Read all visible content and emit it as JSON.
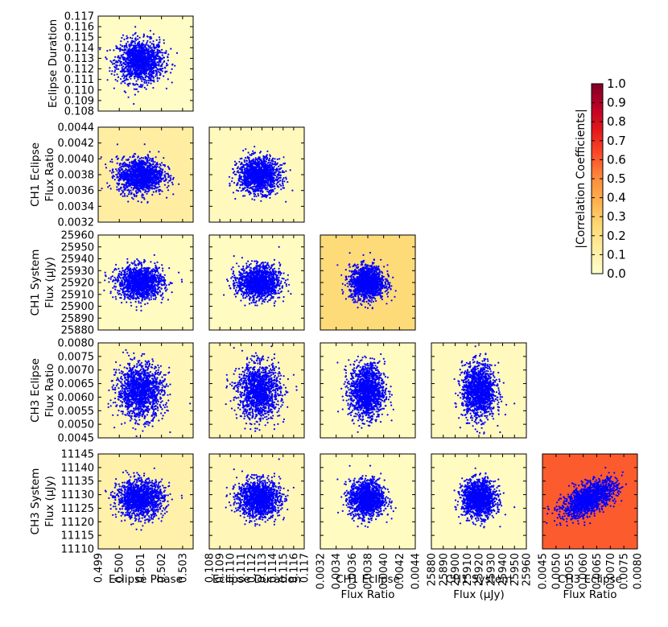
{
  "chart_data": {
    "type": "scatter",
    "title": "",
    "variables": [
      {
        "key": "phase",
        "label_lines": [
          "Eclipse Phase"
        ],
        "range": [
          0.499,
          0.5035
        ],
        "ticks": [
          "0.499",
          "0.500",
          "0.501",
          "0.502",
          "0.503"
        ],
        "tick_values": [
          0.499,
          0.5,
          0.501,
          0.502,
          0.503
        ],
        "mean": 0.501,
        "sd": 0.00055
      },
      {
        "key": "duration",
        "label_lines": [
          "Eclipse Duration"
        ],
        "range": [
          0.108,
          0.117
        ],
        "ticks": [
          "0.108",
          "0.109",
          "0.110",
          "0.111",
          "0.112",
          "0.113",
          "0.114",
          "0.115",
          "0.116",
          "0.117"
        ],
        "tick_values": [
          0.108,
          0.109,
          0.11,
          0.111,
          0.112,
          0.113,
          0.114,
          0.115,
          0.116,
          0.117
        ],
        "mean": 0.1127,
        "sd": 0.001
      },
      {
        "key": "ch1_ratio",
        "label_lines": [
          "CH1 Eclipse",
          "Flux Ratio"
        ],
        "range": [
          0.0032,
          0.0044
        ],
        "ticks": [
          "0.0032",
          "0.0034",
          "0.0036",
          "0.0038",
          "0.0040",
          "0.0042",
          "0.0044"
        ],
        "tick_values": [
          0.0032,
          0.0034,
          0.0036,
          0.0038,
          0.004,
          0.0042,
          0.0044
        ],
        "mean": 0.00379,
        "sd": 0.00011
      },
      {
        "key": "ch1_flux",
        "label_lines": [
          "CH1 System",
          "Flux (μJy)"
        ],
        "range": [
          25880,
          25960
        ],
        "ticks": [
          "25880",
          "25890",
          "25900",
          "25910",
          "25920",
          "25930",
          "25940",
          "25950",
          "25960"
        ],
        "tick_values": [
          25880,
          25890,
          25900,
          25910,
          25920,
          25930,
          25940,
          25950,
          25960
        ],
        "mean": 25920,
        "sd": 7
      },
      {
        "key": "ch3_ratio",
        "label_lines": [
          "CH3 Eclipse",
          "Flux Ratio"
        ],
        "range": [
          0.0045,
          0.008
        ],
        "ticks": [
          "0.0045",
          "0.0050",
          "0.0055",
          "0.0060",
          "0.0065",
          "0.0070",
          "0.0075",
          "0.0080"
        ],
        "tick_values": [
          0.0045,
          0.005,
          0.0055,
          0.006,
          0.0065,
          0.007,
          0.0075,
          0.008
        ],
        "mean": 0.00622,
        "sd": 0.0005
      },
      {
        "key": "ch3_flux",
        "label_lines": [
          "CH3 System",
          "Flux (μJy)"
        ],
        "range": [
          11110,
          11145
        ],
        "ticks": [
          "11110",
          "11115",
          "11120",
          "11125",
          "11130",
          "11135",
          "11140",
          "11145"
        ],
        "tick_values": [
          11110,
          11115,
          11120,
          11125,
          11130,
          11135,
          11140,
          11145
        ],
        "mean": 11128.5,
        "sd": 3.4
      }
    ],
    "panels": [
      {
        "row": 1,
        "col": 0,
        "y": "duration",
        "x": "phase",
        "abs_corr": 0.02
      },
      {
        "row": 2,
        "col": 0,
        "y": "ch1_ratio",
        "x": "phase",
        "abs_corr": 0.12
      },
      {
        "row": 2,
        "col": 1,
        "y": "ch1_ratio",
        "x": "duration",
        "abs_corr": 0.04
      },
      {
        "row": 3,
        "col": 0,
        "y": "ch1_flux",
        "x": "phase",
        "abs_corr": 0.03
      },
      {
        "row": 3,
        "col": 1,
        "y": "ch1_flux",
        "x": "duration",
        "abs_corr": 0.03
      },
      {
        "row": 3,
        "col": 2,
        "y": "ch1_flux",
        "x": "ch1_ratio",
        "abs_corr": 0.24
      },
      {
        "row": 4,
        "col": 0,
        "y": "ch3_ratio",
        "x": "phase",
        "abs_corr": 0.06
      },
      {
        "row": 4,
        "col": 1,
        "y": "ch3_ratio",
        "x": "duration",
        "abs_corr": 0.06
      },
      {
        "row": 4,
        "col": 2,
        "y": "ch3_ratio",
        "x": "ch1_ratio",
        "abs_corr": 0.03
      },
      {
        "row": 4,
        "col": 3,
        "y": "ch3_ratio",
        "x": "ch1_flux",
        "abs_corr": 0.04
      },
      {
        "row": 5,
        "col": 0,
        "y": "ch3_flux",
        "x": "phase",
        "abs_corr": 0.1
      },
      {
        "row": 5,
        "col": 1,
        "y": "ch3_flux",
        "x": "duration",
        "abs_corr": 0.06
      },
      {
        "row": 5,
        "col": 2,
        "y": "ch3_flux",
        "x": "ch1_ratio",
        "abs_corr": 0.03
      },
      {
        "row": 5,
        "col": 3,
        "y": "ch3_flux",
        "x": "ch1_flux",
        "abs_corr": 0.03
      },
      {
        "row": 5,
        "col": 4,
        "y": "ch3_flux",
        "x": "ch3_ratio",
        "abs_corr": 0.6
      }
    ],
    "points_per_panel": 1400,
    "point_color": "#0000ff",
    "colorbar": {
      "label": "|Correlation Coefficients|",
      "range": [
        0.0,
        1.0
      ],
      "ticks": [
        "0.0",
        "0.1",
        "0.2",
        "0.3",
        "0.4",
        "0.5",
        "0.6",
        "0.7",
        "0.8",
        "0.9",
        "1.0"
      ],
      "tick_values": [
        0.0,
        0.1,
        0.2,
        0.3,
        0.4,
        0.5,
        0.6,
        0.7,
        0.8,
        0.9,
        1.0
      ],
      "colormap": "YlOrRd",
      "colormap_stops": [
        "#ffffcc",
        "#ffeda0",
        "#fed976",
        "#feb24c",
        "#fd8d3c",
        "#fc4e2a",
        "#e31a1c",
        "#bd0026",
        "#800026"
      ]
    }
  }
}
